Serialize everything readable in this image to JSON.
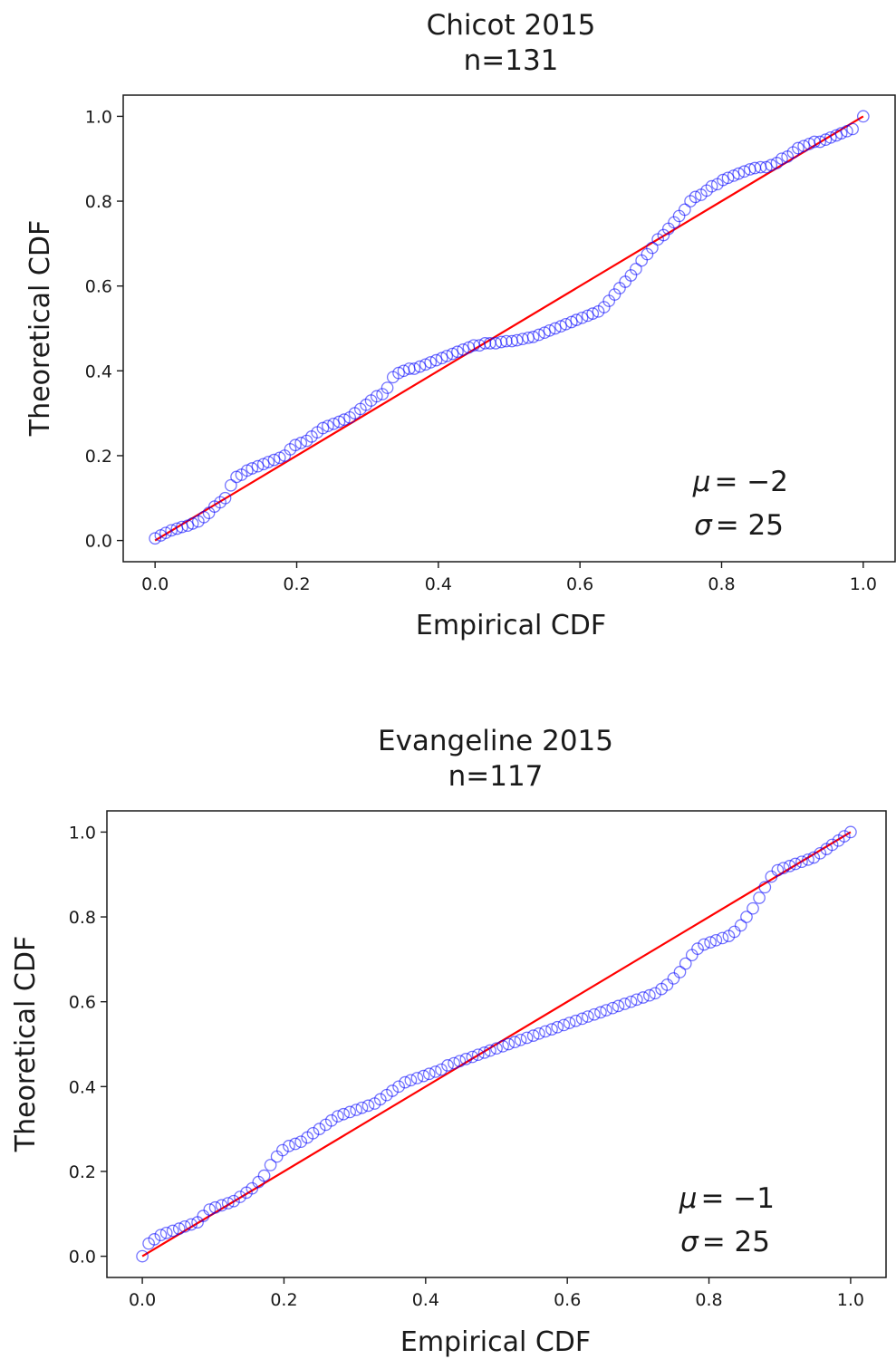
{
  "chart_data": [
    {
      "type": "scatter",
      "title": "Chicot 2015",
      "subtitle": "n=131",
      "xlabel": "Empirical CDF",
      "ylabel": "Theoretical CDF",
      "xlim": [
        -0.045,
        1.045
      ],
      "ylim": [
        -0.05,
        1.05
      ],
      "xticks": [
        "0.0",
        "0.2",
        "0.4",
        "0.6",
        "0.8",
        "1.0"
      ],
      "yticks": [
        "0.0",
        "0.2",
        "0.4",
        "0.6",
        "0.8",
        "1.0"
      ],
      "grid": false,
      "annotation": {
        "mu_symbol": "μ",
        "mu_text": "= −2",
        "sigma_symbol": "σ",
        "sigma_text": "= 25"
      },
      "marker_color": "#0000ff",
      "line_color": "#ff0000",
      "reference_line": {
        "x": [
          0,
          1
        ],
        "y": [
          0,
          1
        ]
      },
      "points": [
        [
          0.0,
          0.005
        ],
        [
          0.008,
          0.012
        ],
        [
          0.015,
          0.018
        ],
        [
          0.023,
          0.024
        ],
        [
          0.031,
          0.028
        ],
        [
          0.038,
          0.032
        ],
        [
          0.046,
          0.035
        ],
        [
          0.053,
          0.04
        ],
        [
          0.061,
          0.045
        ],
        [
          0.069,
          0.055
        ],
        [
          0.076,
          0.065
        ],
        [
          0.084,
          0.08
        ],
        [
          0.092,
          0.09
        ],
        [
          0.099,
          0.1
        ],
        [
          0.107,
          0.13
        ],
        [
          0.115,
          0.15
        ],
        [
          0.122,
          0.155
        ],
        [
          0.13,
          0.165
        ],
        [
          0.137,
          0.17
        ],
        [
          0.145,
          0.175
        ],
        [
          0.153,
          0.18
        ],
        [
          0.16,
          0.185
        ],
        [
          0.168,
          0.19
        ],
        [
          0.176,
          0.195
        ],
        [
          0.183,
          0.2
        ],
        [
          0.191,
          0.215
        ],
        [
          0.198,
          0.225
        ],
        [
          0.206,
          0.23
        ],
        [
          0.214,
          0.235
        ],
        [
          0.221,
          0.245
        ],
        [
          0.229,
          0.255
        ],
        [
          0.237,
          0.265
        ],
        [
          0.244,
          0.27
        ],
        [
          0.252,
          0.275
        ],
        [
          0.26,
          0.28
        ],
        [
          0.267,
          0.285
        ],
        [
          0.275,
          0.29
        ],
        [
          0.282,
          0.3
        ],
        [
          0.29,
          0.31
        ],
        [
          0.298,
          0.32
        ],
        [
          0.305,
          0.33
        ],
        [
          0.313,
          0.34
        ],
        [
          0.321,
          0.345
        ],
        [
          0.328,
          0.36
        ],
        [
          0.336,
          0.385
        ],
        [
          0.344,
          0.395
        ],
        [
          0.351,
          0.4
        ],
        [
          0.359,
          0.405
        ],
        [
          0.366,
          0.405
        ],
        [
          0.374,
          0.41
        ],
        [
          0.382,
          0.415
        ],
        [
          0.389,
          0.42
        ],
        [
          0.397,
          0.425
        ],
        [
          0.405,
          0.43
        ],
        [
          0.412,
          0.435
        ],
        [
          0.42,
          0.44
        ],
        [
          0.427,
          0.445
        ],
        [
          0.435,
          0.45
        ],
        [
          0.443,
          0.455
        ],
        [
          0.45,
          0.46
        ],
        [
          0.458,
          0.46
        ],
        [
          0.466,
          0.465
        ],
        [
          0.473,
          0.465
        ],
        [
          0.481,
          0.465
        ],
        [
          0.489,
          0.468
        ],
        [
          0.496,
          0.47
        ],
        [
          0.504,
          0.47
        ],
        [
          0.511,
          0.472
        ],
        [
          0.519,
          0.475
        ],
        [
          0.527,
          0.478
        ],
        [
          0.534,
          0.48
        ],
        [
          0.542,
          0.485
        ],
        [
          0.55,
          0.49
        ],
        [
          0.557,
          0.495
        ],
        [
          0.565,
          0.5
        ],
        [
          0.573,
          0.505
        ],
        [
          0.58,
          0.51
        ],
        [
          0.588,
          0.515
        ],
        [
          0.595,
          0.52
        ],
        [
          0.603,
          0.525
        ],
        [
          0.611,
          0.53
        ],
        [
          0.618,
          0.535
        ],
        [
          0.626,
          0.54
        ],
        [
          0.634,
          0.55
        ],
        [
          0.641,
          0.565
        ],
        [
          0.649,
          0.58
        ],
        [
          0.656,
          0.595
        ],
        [
          0.664,
          0.61
        ],
        [
          0.672,
          0.625
        ],
        [
          0.679,
          0.64
        ],
        [
          0.687,
          0.66
        ],
        [
          0.695,
          0.675
        ],
        [
          0.702,
          0.69
        ],
        [
          0.71,
          0.71
        ],
        [
          0.718,
          0.72
        ],
        [
          0.725,
          0.735
        ],
        [
          0.733,
          0.75
        ],
        [
          0.74,
          0.765
        ],
        [
          0.748,
          0.78
        ],
        [
          0.756,
          0.8
        ],
        [
          0.763,
          0.81
        ],
        [
          0.771,
          0.815
        ],
        [
          0.779,
          0.825
        ],
        [
          0.786,
          0.835
        ],
        [
          0.794,
          0.84
        ],
        [
          0.802,
          0.85
        ],
        [
          0.809,
          0.855
        ],
        [
          0.817,
          0.86
        ],
        [
          0.824,
          0.865
        ],
        [
          0.832,
          0.87
        ],
        [
          0.84,
          0.875
        ],
        [
          0.847,
          0.878
        ],
        [
          0.855,
          0.88
        ],
        [
          0.863,
          0.88
        ],
        [
          0.87,
          0.885
        ],
        [
          0.878,
          0.89
        ],
        [
          0.885,
          0.9
        ],
        [
          0.893,
          0.905
        ],
        [
          0.901,
          0.915
        ],
        [
          0.908,
          0.925
        ],
        [
          0.916,
          0.93
        ],
        [
          0.924,
          0.935
        ],
        [
          0.931,
          0.94
        ],
        [
          0.939,
          0.94
        ],
        [
          0.947,
          0.945
        ],
        [
          0.954,
          0.95
        ],
        [
          0.962,
          0.955
        ],
        [
          0.969,
          0.96
        ],
        [
          0.977,
          0.965
        ],
        [
          0.985,
          0.97
        ],
        [
          1.0,
          1.0
        ]
      ]
    },
    {
      "type": "scatter",
      "title": "Evangeline 2015",
      "subtitle": "n=117",
      "xlabel": "Empirical CDF",
      "ylabel": "Theoretical CDF",
      "xlim": [
        -0.05,
        1.05
      ],
      "ylim": [
        -0.05,
        1.05
      ],
      "xticks": [
        "0.0",
        "0.2",
        "0.4",
        "0.6",
        "0.8",
        "1.0"
      ],
      "yticks": [
        "0.0",
        "0.2",
        "0.4",
        "0.6",
        "0.8",
        "1.0"
      ],
      "grid": false,
      "annotation": {
        "mu_symbol": "μ",
        "mu_text": "= −1",
        "sigma_symbol": "σ",
        "sigma_text": "= 25"
      },
      "marker_color": "#0000ff",
      "line_color": "#ff0000",
      "reference_line": {
        "x": [
          0,
          1
        ],
        "y": [
          0,
          1
        ]
      },
      "points": [
        [
          0.0,
          0.0
        ],
        [
          0.009,
          0.03
        ],
        [
          0.017,
          0.04
        ],
        [
          0.026,
          0.05
        ],
        [
          0.034,
          0.055
        ],
        [
          0.043,
          0.06
        ],
        [
          0.052,
          0.065
        ],
        [
          0.06,
          0.07
        ],
        [
          0.069,
          0.075
        ],
        [
          0.078,
          0.08
        ],
        [
          0.086,
          0.095
        ],
        [
          0.095,
          0.11
        ],
        [
          0.103,
          0.115
        ],
        [
          0.112,
          0.12
        ],
        [
          0.121,
          0.125
        ],
        [
          0.129,
          0.13
        ],
        [
          0.138,
          0.14
        ],
        [
          0.147,
          0.15
        ],
        [
          0.155,
          0.16
        ],
        [
          0.164,
          0.175
        ],
        [
          0.172,
          0.19
        ],
        [
          0.181,
          0.215
        ],
        [
          0.19,
          0.235
        ],
        [
          0.198,
          0.25
        ],
        [
          0.207,
          0.26
        ],
        [
          0.216,
          0.265
        ],
        [
          0.224,
          0.27
        ],
        [
          0.233,
          0.28
        ],
        [
          0.241,
          0.29
        ],
        [
          0.25,
          0.3
        ],
        [
          0.259,
          0.31
        ],
        [
          0.267,
          0.32
        ],
        [
          0.276,
          0.33
        ],
        [
          0.284,
          0.335
        ],
        [
          0.293,
          0.34
        ],
        [
          0.302,
          0.345
        ],
        [
          0.31,
          0.35
        ],
        [
          0.319,
          0.355
        ],
        [
          0.328,
          0.36
        ],
        [
          0.336,
          0.37
        ],
        [
          0.345,
          0.38
        ],
        [
          0.353,
          0.39
        ],
        [
          0.362,
          0.4
        ],
        [
          0.371,
          0.41
        ],
        [
          0.379,
          0.415
        ],
        [
          0.388,
          0.42
        ],
        [
          0.397,
          0.425
        ],
        [
          0.405,
          0.43
        ],
        [
          0.414,
          0.435
        ],
        [
          0.422,
          0.44
        ],
        [
          0.431,
          0.45
        ],
        [
          0.44,
          0.455
        ],
        [
          0.448,
          0.46
        ],
        [
          0.457,
          0.465
        ],
        [
          0.466,
          0.47
        ],
        [
          0.474,
          0.475
        ],
        [
          0.483,
          0.48
        ],
        [
          0.491,
          0.485
        ],
        [
          0.5,
          0.49
        ],
        [
          0.509,
          0.495
        ],
        [
          0.517,
          0.5
        ],
        [
          0.526,
          0.505
        ],
        [
          0.534,
          0.51
        ],
        [
          0.543,
          0.515
        ],
        [
          0.552,
          0.52
        ],
        [
          0.56,
          0.525
        ],
        [
          0.569,
          0.53
        ],
        [
          0.578,
          0.535
        ],
        [
          0.586,
          0.54
        ],
        [
          0.595,
          0.545
        ],
        [
          0.603,
          0.55
        ],
        [
          0.612,
          0.555
        ],
        [
          0.621,
          0.56
        ],
        [
          0.629,
          0.565
        ],
        [
          0.638,
          0.57
        ],
        [
          0.647,
          0.575
        ],
        [
          0.655,
          0.58
        ],
        [
          0.664,
          0.585
        ],
        [
          0.672,
          0.59
        ],
        [
          0.681,
          0.595
        ],
        [
          0.69,
          0.6
        ],
        [
          0.698,
          0.605
        ],
        [
          0.707,
          0.61
        ],
        [
          0.716,
          0.615
        ],
        [
          0.724,
          0.62
        ],
        [
          0.733,
          0.63
        ],
        [
          0.741,
          0.64
        ],
        [
          0.75,
          0.655
        ],
        [
          0.759,
          0.67
        ],
        [
          0.767,
          0.69
        ],
        [
          0.776,
          0.71
        ],
        [
          0.784,
          0.725
        ],
        [
          0.793,
          0.735
        ],
        [
          0.802,
          0.74
        ],
        [
          0.81,
          0.745
        ],
        [
          0.819,
          0.75
        ],
        [
          0.828,
          0.755
        ],
        [
          0.836,
          0.765
        ],
        [
          0.845,
          0.78
        ],
        [
          0.853,
          0.8
        ],
        [
          0.862,
          0.82
        ],
        [
          0.871,
          0.845
        ],
        [
          0.879,
          0.87
        ],
        [
          0.888,
          0.895
        ],
        [
          0.897,
          0.91
        ],
        [
          0.905,
          0.915
        ],
        [
          0.914,
          0.92
        ],
        [
          0.922,
          0.925
        ],
        [
          0.931,
          0.93
        ],
        [
          0.94,
          0.935
        ],
        [
          0.948,
          0.94
        ],
        [
          0.957,
          0.95
        ],
        [
          0.966,
          0.96
        ],
        [
          0.974,
          0.97
        ],
        [
          0.983,
          0.98
        ],
        [
          0.991,
          0.99
        ],
        [
          1.0,
          1.0
        ]
      ]
    }
  ]
}
